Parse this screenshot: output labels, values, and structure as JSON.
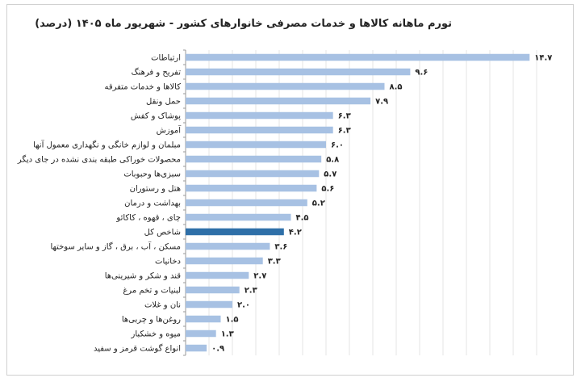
{
  "chart_data": {
    "type": "bar",
    "orientation": "horizontal",
    "title": "تورم ماهانه کالاها و خدمات مصرفی خانوارهای کشور - شهریور ماه ۱۴۰۵ (درصد)",
    "xlabel": "",
    "ylabel": "",
    "xlim": [
      0,
      15
    ],
    "grid": true,
    "colors": {
      "bar": "#a7c1e3",
      "highlight": "#2e6fa8",
      "grid": "#e4e4e4",
      "axis": "#999999"
    },
    "categories": [
      "ارتباطات",
      "تفریح و فرهنگ",
      "کالاها و خدمات متفرقه",
      "حمل ونقل",
      "پوشاک و کفش",
      "آموزش",
      "مبلمان و لوازم خانگی و نگهداری معمول آنها",
      "محصولات خوراکی طبقه بندی نشده در جای دیگر",
      "سبزی‌ها وحبوبات",
      "هتل و رستوران",
      "بهداشت و درمان",
      "چای ، قهوه ، کاکائو",
      "شاخص کل",
      "مسکن ، آب ، برق ، گاز و سایر سوختها",
      "دخانیات",
      "قند و شکر و شیرینی‌ها",
      "لبنیات و تخم مرغ",
      "نان و غلات",
      "روغن‌ها و چربی‌ها",
      "میوه و خشکبار",
      "انواع گوشت قرمز و سفید"
    ],
    "values": [
      14.7,
      9.6,
      8.5,
      7.9,
      6.3,
      6.3,
      6.0,
      5.8,
      5.7,
      5.6,
      5.2,
      4.5,
      4.2,
      3.6,
      3.3,
      2.7,
      2.3,
      2.0,
      1.5,
      1.3,
      0.9
    ],
    "value_labels": [
      "۱۴.۷",
      "۹.۶",
      "۸.۵",
      "۷.۹",
      "۶.۳",
      "۶.۳",
      "۶.۰",
      "۵.۸",
      "۵.۷",
      "۵.۶",
      "۵.۲",
      "۴.۵",
      "۴.۲",
      "۳.۶",
      "۳.۳",
      "۲.۷",
      "۲.۳",
      "۲.۰",
      "۱.۵",
      "۱.۳",
      "۰.۹"
    ],
    "highlight_category": "شاخص کل"
  }
}
